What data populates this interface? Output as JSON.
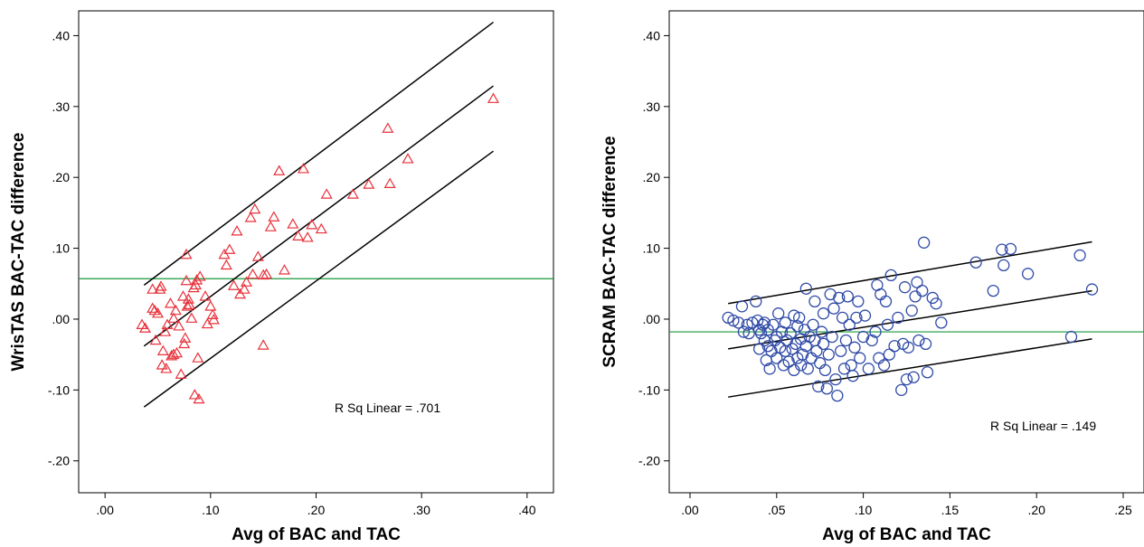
{
  "chart_data": [
    {
      "type": "scatter",
      "title": "",
      "xlabel": "Avg of BAC and TAC",
      "ylabel": "WrisTAS BAC-TAC difference",
      "xlim": [
        -0.025,
        0.425
      ],
      "ylim": [
        -0.245,
        0.435
      ],
      "x_ticks": [
        0.0,
        0.1,
        0.2,
        0.3,
        0.4
      ],
      "x_tick_labels": [
        ".00",
        ".10",
        ".20",
        ".30",
        ".40"
      ],
      "y_ticks": [
        -0.2,
        -0.1,
        0.0,
        0.1,
        0.2,
        0.3,
        0.4
      ],
      "y_tick_labels": [
        "-.20",
        "-.10",
        ".00",
        ".10",
        ".20",
        ".30",
        ".40"
      ],
      "annotation": "R Sq Linear = .701",
      "marker": "triangle",
      "marker_color": "#e8303a",
      "line_color": "#000000",
      "mean_line_color": "#1a9a3c",
      "mean_line_y": 0.057,
      "fit_lines": [
        {
          "x": [
            0.037,
            0.368
          ],
          "y": [
            0.048,
            0.419
          ]
        },
        {
          "x": [
            0.037,
            0.368
          ],
          "y": [
            -0.038,
            0.329
          ]
        },
        {
          "x": [
            0.037,
            0.368
          ],
          "y": [
            -0.124,
            0.237
          ]
        }
      ],
      "points": [
        [
          0.035,
          -0.008
        ],
        [
          0.038,
          -0.013
        ],
        [
          0.045,
          0.042
        ],
        [
          0.045,
          0.015
        ],
        [
          0.047,
          0.012
        ],
        [
          0.048,
          -0.03
        ],
        [
          0.05,
          0.008
        ],
        [
          0.052,
          0.042
        ],
        [
          0.053,
          0.046
        ],
        [
          0.054,
          -0.065
        ],
        [
          0.055,
          -0.045
        ],
        [
          0.057,
          -0.018
        ],
        [
          0.058,
          -0.07
        ],
        [
          0.059,
          -0.008
        ],
        [
          0.062,
          0.022
        ],
        [
          0.063,
          -0.052
        ],
        [
          0.065,
          -0.05
        ],
        [
          0.067,
          0.012
        ],
        [
          0.068,
          -0.048
        ],
        [
          0.065,
          0.001
        ],
        [
          0.07,
          -0.01
        ],
        [
          0.072,
          -0.078
        ],
        [
          0.074,
          0.032
        ],
        [
          0.075,
          -0.035
        ],
        [
          0.076,
          -0.027
        ],
        [
          0.077,
          0.054
        ],
        [
          0.077,
          0.091
        ],
        [
          0.078,
          0.018
        ],
        [
          0.079,
          0.028
        ],
        [
          0.08,
          0.02
        ],
        [
          0.082,
          0.001
        ],
        [
          0.084,
          0.044
        ],
        [
          0.085,
          -0.107
        ],
        [
          0.086,
          0.048
        ],
        [
          0.087,
          0.055
        ],
        [
          0.088,
          -0.055
        ],
        [
          0.089,
          -0.113
        ],
        [
          0.09,
          0.06
        ],
        [
          0.095,
          0.032
        ],
        [
          0.097,
          -0.007
        ],
        [
          0.1,
          0.018
        ],
        [
          0.102,
          0.006
        ],
        [
          0.103,
          -0.001
        ],
        [
          0.113,
          0.091
        ],
        [
          0.115,
          0.076
        ],
        [
          0.118,
          0.098
        ],
        [
          0.122,
          0.047
        ],
        [
          0.125,
          0.124
        ],
        [
          0.128,
          0.035
        ],
        [
          0.132,
          0.042
        ],
        [
          0.134,
          0.052
        ],
        [
          0.138,
          0.143
        ],
        [
          0.14,
          0.063
        ],
        [
          0.142,
          0.155
        ],
        [
          0.145,
          0.088
        ],
        [
          0.15,
          -0.037
        ],
        [
          0.15,
          0.062
        ],
        [
          0.153,
          0.063
        ],
        [
          0.157,
          0.13
        ],
        [
          0.16,
          0.144
        ],
        [
          0.165,
          0.209
        ],
        [
          0.17,
          0.069
        ],
        [
          0.178,
          0.134
        ],
        [
          0.183,
          0.117
        ],
        [
          0.188,
          0.212
        ],
        [
          0.192,
          0.115
        ],
        [
          0.196,
          0.133
        ],
        [
          0.205,
          0.127
        ],
        [
          0.21,
          0.176
        ],
        [
          0.235,
          0.176
        ],
        [
          0.25,
          0.19
        ],
        [
          0.268,
          0.269
        ],
        [
          0.27,
          0.191
        ],
        [
          0.287,
          0.226
        ],
        [
          0.368,
          0.311
        ]
      ]
    },
    {
      "type": "scatter",
      "title": "",
      "xlabel": "Avg of BAC and TAC",
      "ylabel": "SCRAM BAC-TAC difference",
      "xlim": [
        -0.012,
        0.262
      ],
      "ylim": [
        -0.245,
        0.435
      ],
      "x_ticks": [
        0.0,
        0.05,
        0.1,
        0.15,
        0.2,
        0.25
      ],
      "x_tick_labels": [
        ".00",
        ".05",
        ".10",
        ".15",
        ".20",
        ".25"
      ],
      "y_ticks": [
        -0.2,
        -0.1,
        0.0,
        0.1,
        0.2,
        0.3,
        0.4
      ],
      "y_tick_labels": [
        "-.20",
        "-.10",
        ".00",
        ".10",
        ".20",
        ".30",
        ".40"
      ],
      "annotation": "R Sq Linear = .149",
      "marker": "circle",
      "marker_color": "#2f4aa6",
      "line_color": "#000000",
      "mean_line_color": "#1a9a3c",
      "mean_line_y": -0.018,
      "fit_lines": [
        {
          "x": [
            0.022,
            0.232
          ],
          "y": [
            0.022,
            0.109
          ]
        },
        {
          "x": [
            0.022,
            0.232
          ],
          "y": [
            -0.042,
            0.04
          ]
        },
        {
          "x": [
            0.022,
            0.232
          ],
          "y": [
            -0.11,
            -0.028
          ]
        }
      ],
      "points": [
        [
          0.022,
          0.002
        ],
        [
          0.025,
          -0.002
        ],
        [
          0.028,
          -0.005
        ],
        [
          0.03,
          0.018
        ],
        [
          0.031,
          -0.018
        ],
        [
          0.033,
          -0.008
        ],
        [
          0.034,
          -0.02
        ],
        [
          0.036,
          -0.005
        ],
        [
          0.038,
          0.025
        ],
        [
          0.039,
          -0.002
        ],
        [
          0.04,
          -0.015
        ],
        [
          0.04,
          -0.042
        ],
        [
          0.041,
          -0.02
        ],
        [
          0.042,
          -0.008
        ],
        [
          0.043,
          -0.03
        ],
        [
          0.043,
          -0.005
        ],
        [
          0.044,
          -0.058
        ],
        [
          0.045,
          -0.038
        ],
        [
          0.045,
          -0.015
        ],
        [
          0.046,
          -0.07
        ],
        [
          0.047,
          -0.045
        ],
        [
          0.048,
          -0.008
        ],
        [
          0.049,
          -0.03
        ],
        [
          0.05,
          -0.055
        ],
        [
          0.05,
          -0.025
        ],
        [
          0.051,
          0.008
        ],
        [
          0.052,
          -0.04
        ],
        [
          0.053,
          -0.018
        ],
        [
          0.054,
          -0.065
        ],
        [
          0.055,
          -0.045
        ],
        [
          0.055,
          -0.005
        ],
        [
          0.056,
          -0.03
        ],
        [
          0.057,
          -0.06
        ],
        [
          0.058,
          -0.02
        ],
        [
          0.059,
          -0.042
        ],
        [
          0.06,
          -0.072
        ],
        [
          0.06,
          0.005
        ],
        [
          0.061,
          -0.035
        ],
        [
          0.062,
          -0.055
        ],
        [
          0.062,
          -0.01
        ],
        [
          0.063,
          0.002
        ],
        [
          0.064,
          -0.065
        ],
        [
          0.064,
          -0.028
        ],
        [
          0.065,
          -0.05
        ],
        [
          0.066,
          -0.015
        ],
        [
          0.067,
          -0.038
        ],
        [
          0.067,
          0.043
        ],
        [
          0.068,
          -0.07
        ],
        [
          0.069,
          -0.025
        ],
        [
          0.07,
          -0.055
        ],
        [
          0.071,
          -0.008
        ],
        [
          0.072,
          -0.03
        ],
        [
          0.072,
          0.025
        ],
        [
          0.073,
          -0.045
        ],
        [
          0.074,
          -0.095
        ],
        [
          0.075,
          -0.062
        ],
        [
          0.076,
          -0.018
        ],
        [
          0.077,
          -0.035
        ],
        [
          0.077,
          0.008
        ],
        [
          0.078,
          -0.072
        ],
        [
          0.079,
          -0.098
        ],
        [
          0.08,
          -0.05
        ],
        [
          0.081,
          0.035
        ],
        [
          0.082,
          -0.025
        ],
        [
          0.083,
          0.015
        ],
        [
          0.084,
          -0.085
        ],
        [
          0.085,
          -0.108
        ],
        [
          0.086,
          0.03
        ],
        [
          0.087,
          -0.045
        ],
        [
          0.088,
          0.002
        ],
        [
          0.089,
          -0.07
        ],
        [
          0.09,
          -0.03
        ],
        [
          0.091,
          0.032
        ],
        [
          0.092,
          -0.008
        ],
        [
          0.093,
          -0.065
        ],
        [
          0.094,
          -0.08
        ],
        [
          0.095,
          -0.04
        ],
        [
          0.096,
          0.002
        ],
        [
          0.097,
          0.025
        ],
        [
          0.098,
          -0.055
        ],
        [
          0.1,
          -0.025
        ],
        [
          0.101,
          0.005
        ],
        [
          0.103,
          -0.07
        ],
        [
          0.105,
          -0.03
        ],
        [
          0.107,
          -0.018
        ],
        [
          0.108,
          0.048
        ],
        [
          0.109,
          -0.055
        ],
        [
          0.11,
          0.035
        ],
        [
          0.112,
          -0.065
        ],
        [
          0.113,
          0.025
        ],
        [
          0.114,
          -0.008
        ],
        [
          0.115,
          -0.05
        ],
        [
          0.116,
          0.062
        ],
        [
          0.118,
          -0.038
        ],
        [
          0.12,
          0.002
        ],
        [
          0.122,
          -0.1
        ],
        [
          0.123,
          -0.035
        ],
        [
          0.124,
          0.045
        ],
        [
          0.125,
          -0.085
        ],
        [
          0.126,
          -0.04
        ],
        [
          0.128,
          0.012
        ],
        [
          0.129,
          -0.082
        ],
        [
          0.13,
          0.032
        ],
        [
          0.131,
          0.052
        ],
        [
          0.132,
          -0.03
        ],
        [
          0.134,
          0.04
        ],
        [
          0.135,
          0.108
        ],
        [
          0.136,
          -0.035
        ],
        [
          0.137,
          -0.075
        ],
        [
          0.14,
          0.03
        ],
        [
          0.142,
          0.022
        ],
        [
          0.145,
          -0.005
        ],
        [
          0.165,
          0.08
        ],
        [
          0.175,
          0.04
        ],
        [
          0.18,
          0.098
        ],
        [
          0.181,
          0.076
        ],
        [
          0.185,
          0.099
        ],
        [
          0.195,
          0.064
        ],
        [
          0.22,
          -0.025
        ],
        [
          0.225,
          0.09
        ],
        [
          0.232,
          0.042
        ]
      ]
    }
  ]
}
